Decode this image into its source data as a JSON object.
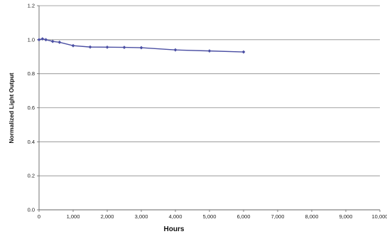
{
  "chart_data": {
    "type": "line",
    "title": "",
    "xlabel": "Hours",
    "ylabel": "Normalized Light Output",
    "xlim": [
      0,
      10000
    ],
    "ylim": [
      0,
      1.2
    ],
    "x_ticks": [
      0,
      1000,
      2000,
      3000,
      4000,
      5000,
      6000,
      7000,
      8000,
      9000,
      10000
    ],
    "x_tick_labels": [
      "0",
      "1,000",
      "2,000",
      "3,000",
      "4,000",
      "5,000",
      "6,000",
      "7,000",
      "8,000",
      "9,000",
      "10,000"
    ],
    "y_ticks": [
      0,
      0.2,
      0.4,
      0.6,
      0.8,
      1.0,
      1.2
    ],
    "y_tick_labels": [
      "0.0",
      "0.2",
      "0.4",
      "0.6",
      "0.8",
      "1.0",
      "1.2"
    ],
    "grid": "horizontal",
    "legend": "none",
    "series": [
      {
        "color": "#4b4fa3",
        "x": [
          0,
          100,
          200,
          400,
          600,
          1000,
          1500,
          2000,
          2500,
          3000,
          4000,
          5000,
          6000
        ],
        "y": [
          1.0,
          1.005,
          1.0,
          0.99,
          0.985,
          0.965,
          0.957,
          0.956,
          0.955,
          0.953,
          0.94,
          0.934,
          0.928
        ]
      }
    ]
  }
}
